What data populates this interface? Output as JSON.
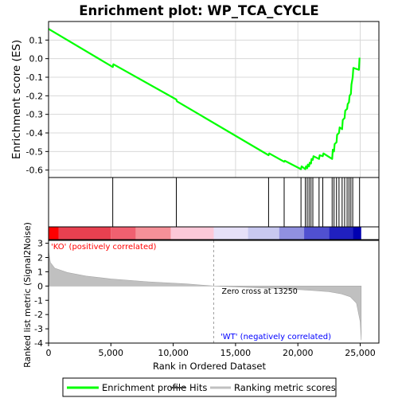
{
  "chart_data": {
    "type": "line",
    "title": "Enrichment plot: WP_TCA_CYCLE",
    "xlabel": "Rank in Ordered Dataset",
    "xlim": [
      0,
      26500
    ],
    "x_ticks": [
      0,
      5000,
      10000,
      15000,
      20000,
      25000
    ],
    "x_tick_labels": [
      "0",
      "5,000",
      "10,000",
      "15,000",
      "20,000",
      "25,000"
    ],
    "top_panel": {
      "ylabel": "Enrichment score (ES)",
      "ylim": [
        -0.64,
        0.2
      ],
      "y_ticks": [
        -0.6,
        -0.5,
        -0.4,
        -0.3,
        -0.2,
        -0.1,
        0.0,
        0.1
      ],
      "y_tick_labels": [
        "-0.6",
        "-0.5",
        "-0.4",
        "-0.3",
        "-0.2",
        "-0.1",
        "0.0",
        "0.1"
      ],
      "grid": true,
      "series": [
        {
          "name": "Enrichment profile",
          "color": "#00ff00",
          "x": [
            0,
            5150,
            5200,
            10250,
            10300,
            17650,
            17700,
            18900,
            18950,
            20250,
            20300,
            20600,
            20650,
            20750,
            20800,
            20900,
            20950,
            21050,
            21100,
            21200,
            21250,
            21700,
            21750,
            22000,
            22050,
            22750,
            22800,
            22900,
            22950,
            23100,
            23150,
            23300,
            23350,
            23550,
            23600,
            23750,
            23800,
            23950,
            24000,
            24100,
            24150,
            24250,
            24300,
            24400,
            24450,
            24900,
            24950
          ],
          "y": [
            0.16,
            -0.045,
            -0.03,
            -0.22,
            -0.23,
            -0.52,
            -0.51,
            -0.555,
            -0.55,
            -0.595,
            -0.58,
            -0.595,
            -0.58,
            -0.59,
            -0.57,
            -0.58,
            -0.56,
            -0.565,
            -0.54,
            -0.545,
            -0.525,
            -0.54,
            -0.52,
            -0.525,
            -0.51,
            -0.54,
            -0.49,
            -0.5,
            -0.46,
            -0.45,
            -0.41,
            -0.4,
            -0.37,
            -0.38,
            -0.33,
            -0.32,
            -0.28,
            -0.27,
            -0.245,
            -0.235,
            -0.2,
            -0.19,
            -0.14,
            -0.1,
            -0.05,
            -0.06,
            0.005
          ]
        }
      ]
    },
    "hits_panel": {
      "name": "Hits",
      "color": "#000000",
      "positions": [
        5150,
        10250,
        17650,
        18900,
        20250,
        20600,
        20750,
        20900,
        21050,
        21200,
        21700,
        22000,
        22750,
        22900,
        23100,
        23300,
        23550,
        23750,
        23950,
        24100,
        24250,
        24400,
        24950
      ]
    },
    "bottom_panel": {
      "ylabel": "Ranked list metric (Signal2Noise)",
      "ylim": [
        -4,
        3.2
      ],
      "y_ticks": [
        -4,
        -3,
        -2,
        -1,
        0,
        1,
        2,
        3
      ],
      "y_tick_labels": [
        "-4",
        "-3",
        "-2",
        "-1",
        "0",
        "1",
        "2",
        "3"
      ],
      "series": [
        {
          "name": "Ranking metric scores",
          "color": "#c0c0c0",
          "x": [
            0,
            30,
            150,
            500,
            1500,
            3000,
            5000,
            8000,
            11000,
            13250,
            16000,
            19000,
            21000,
            22500,
            23500,
            24200,
            24700,
            25000,
            25080
          ],
          "y": [
            3.0,
            2.3,
            1.65,
            1.25,
            0.95,
            0.7,
            0.5,
            0.3,
            0.15,
            0.0,
            -0.1,
            -0.2,
            -0.3,
            -0.4,
            -0.55,
            -0.75,
            -1.2,
            -2.5,
            -3.8
          ]
        }
      ],
      "annotations": {
        "zero_cross": "Zero cross at 13250",
        "positive_label": "'KO' (positively correlated)",
        "negative_label": "'WT' (negatively correlated)"
      },
      "zero_cross_x": 13250
    },
    "heatmap_bar": {
      "colors": [
        "#ff0000",
        "#e84050",
        "#f06070",
        "#f59098",
        "#fcc8d8",
        "#e6e0f8",
        "#c8c8f0",
        "#9090e0",
        "#5050d0",
        "#2020c0",
        "#0000b0"
      ],
      "stops_x": [
        0,
        800,
        5000,
        7000,
        9800,
        13250,
        16000,
        18500,
        20500,
        22500,
        24400,
        25080
      ]
    },
    "legend": {
      "placement": "bottom",
      "items": [
        {
          "label": "Enrichment profile",
          "color": "#00ff00"
        },
        {
          "label": "Hits",
          "color": "#404040"
        },
        {
          "label": "Ranking metric scores",
          "color": "#c0c0c0"
        }
      ]
    }
  }
}
